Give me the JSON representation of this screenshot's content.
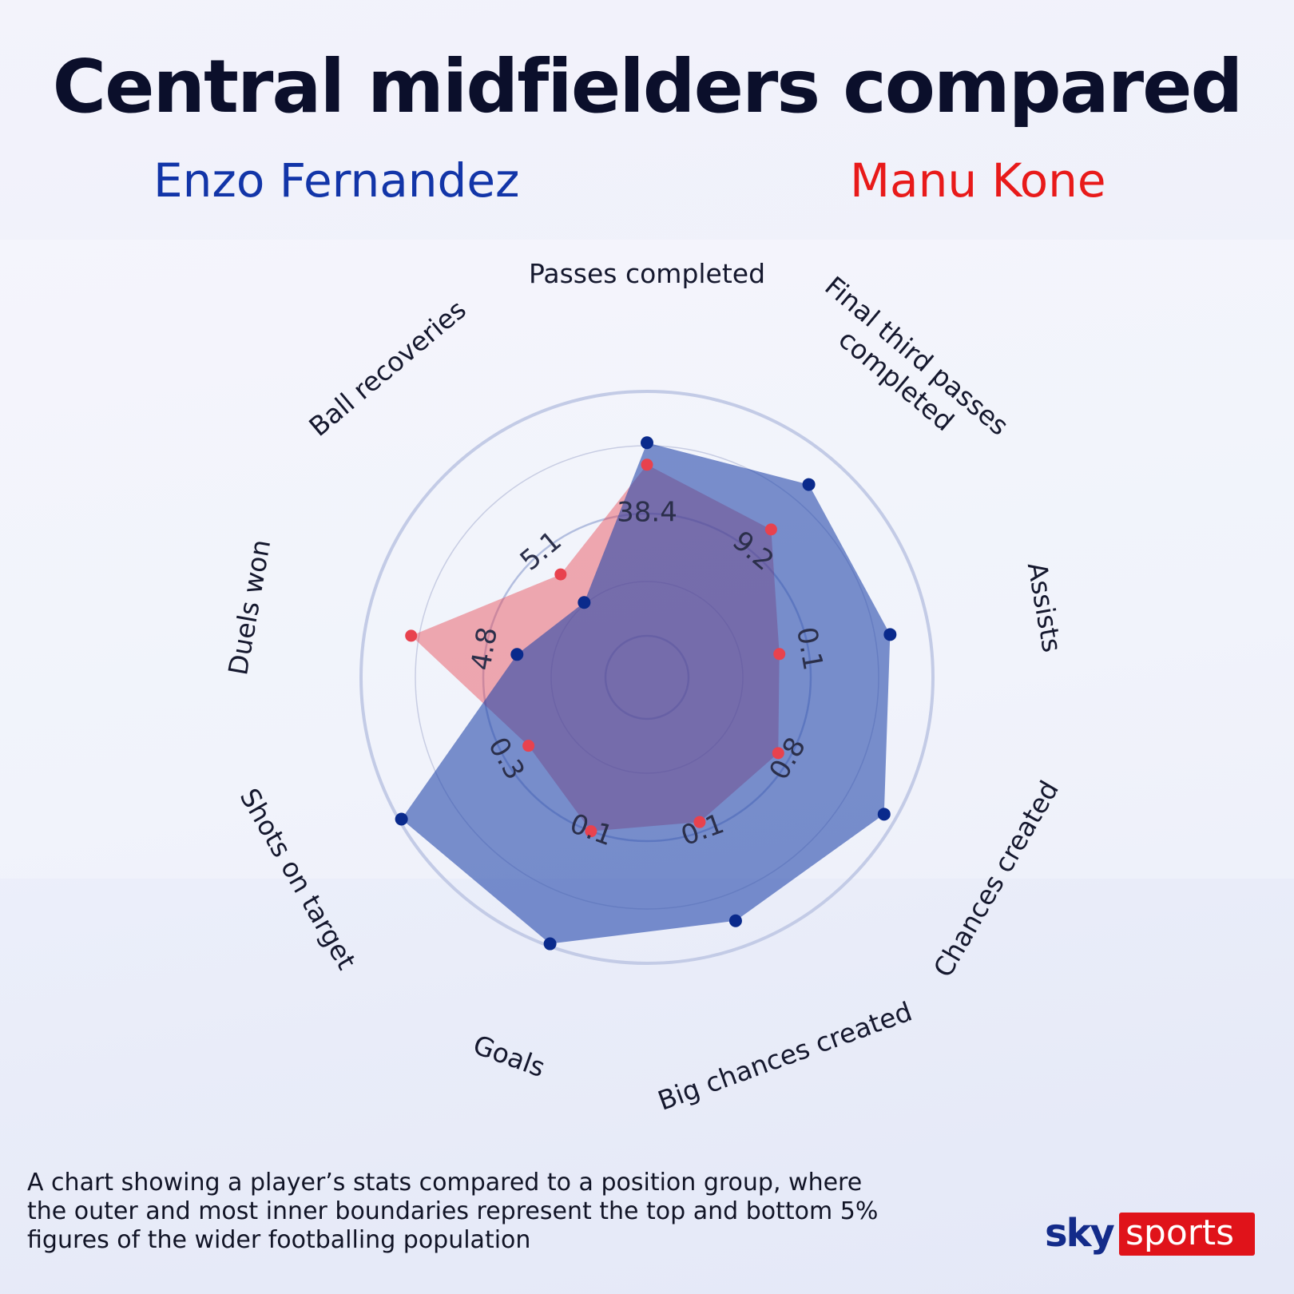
{
  "title": "Central midfielders compared",
  "players": {
    "left": {
      "name": "Enzo Fernandez",
      "color": "#1235a8"
    },
    "right": {
      "name": "Manu Kone",
      "color": "#e81a1a"
    }
  },
  "caption": "A chart showing a player’s stats compared to a position group,  where the outer and most inner boundaries represent the top  and bottom 5% figures of the wider footballing population",
  "logo": {
    "sky": "sky",
    "sports": "sports"
  },
  "chart_data": {
    "type": "radar",
    "axes": [
      "Passes completed",
      "Final third passes completed",
      "Assists",
      "Chances created",
      "Big chances created",
      "Goals",
      "Shots on target",
      "Duels won",
      "Ball recoveries"
    ],
    "scale_note": "0 = bottom 5% boundary, 1 = top 5% boundary",
    "value_labels": [
      "38.4",
      "9.2",
      "0.1",
      "0.8",
      "0.1",
      "0.1",
      "0.3",
      "4.8",
      "5.1"
    ],
    "series": [
      {
        "name": "Enzo Fernandez",
        "color": "#1f44a8",
        "values": [
          0.79,
          0.86,
          0.84,
          0.95,
          0.89,
          0.99,
          0.99,
          0.37,
          0.23
        ]
      },
      {
        "name": "Manu Kone",
        "color": "#e84652",
        "values": [
          0.7,
          0.62,
          0.38,
          0.45,
          0.46,
          0.5,
          0.39,
          0.81,
          0.38
        ]
      }
    ],
    "grid": true,
    "legend": "top"
  }
}
